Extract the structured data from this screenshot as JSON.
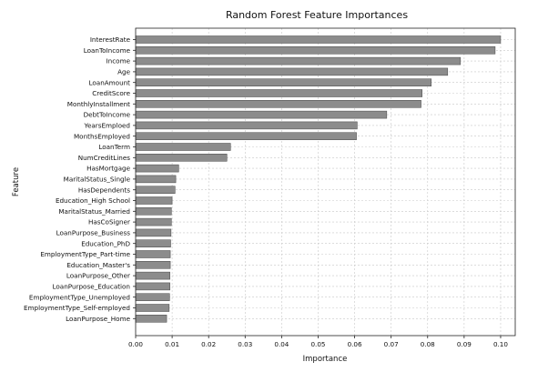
{
  "chart_data": {
    "type": "bar",
    "orientation": "horizontal",
    "title": "Random Forest Feature Importances",
    "xlabel": "Importance",
    "ylabel": "Feature",
    "xlim": [
      0.0,
      0.104
    ],
    "xticks": [
      "0.00",
      "0.01",
      "0.02",
      "0.03",
      "0.04",
      "0.05",
      "0.06",
      "0.07",
      "0.08",
      "0.09",
      "0.10"
    ],
    "grid": true,
    "bar_color": "#8c8c8c",
    "categories": [
      "InterestRate",
      "LoanToIncome",
      "Income",
      "Age",
      "LoanAmount",
      "CreditScore",
      "MonthlyInstallment",
      "DebtToIncome",
      "YearsEmploed",
      "MonthsEmployed",
      "LoanTerm",
      "NumCreditLines",
      "HasMortgage",
      "MaritalStatus_Single",
      "HasDependents",
      "Education_High School",
      "MaritalStatus_Married",
      "HasCoSigner",
      "LoanPurpose_Business",
      "Education_PhD",
      "EmploymentType_Part-time",
      "Education_Master's",
      "LoanPurpose_Other",
      "LoanPurpose_Education",
      "EmploymentType_Unemployed",
      "EmploymentType_Self-employed",
      "LoanPurpose_Home"
    ],
    "values": [
      0.1,
      0.0985,
      0.089,
      0.0855,
      0.081,
      0.0785,
      0.0782,
      0.0688,
      0.0607,
      0.0605,
      0.026,
      0.025,
      0.0118,
      0.011,
      0.0108,
      0.01,
      0.0098,
      0.0098,
      0.0097,
      0.0096,
      0.0095,
      0.0095,
      0.0094,
      0.0094,
      0.0093,
      0.0092,
      0.0085
    ]
  }
}
